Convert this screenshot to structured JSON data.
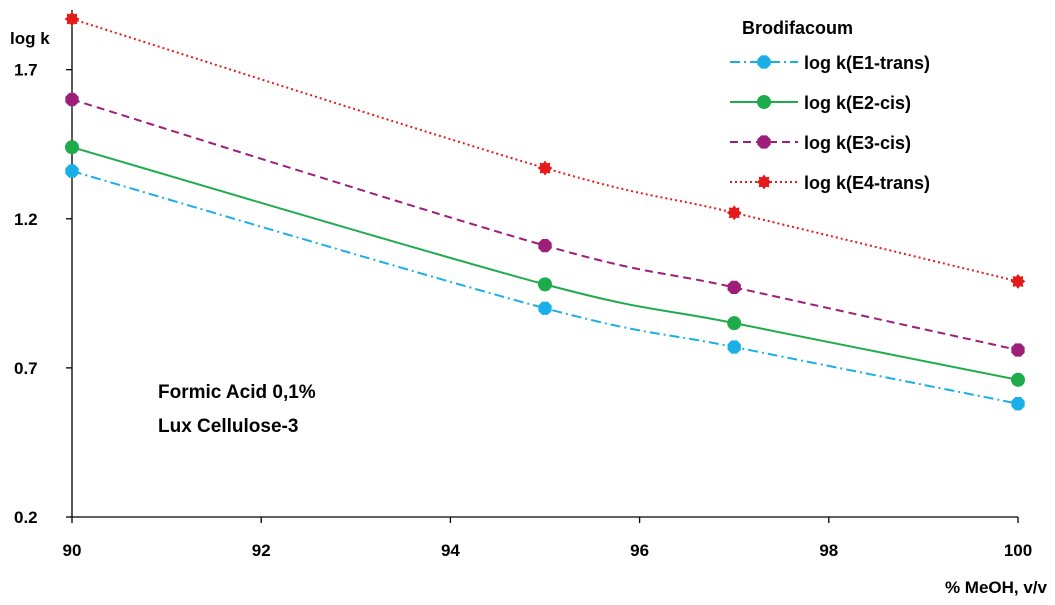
{
  "chart_data": {
    "type": "line",
    "title": "Brodifacoum",
    "xlabel": "% MeOH, v/v",
    "ylabel": "log k",
    "xlim": [
      90,
      100
    ],
    "ylim": [
      0.2,
      1.9
    ],
    "xticks": [
      90,
      92,
      94,
      96,
      98,
      100
    ],
    "xtick_labels": [
      "90",
      "92",
      "94",
      "96",
      "98",
      "100"
    ],
    "yticks": [
      0.2,
      0.7,
      1.2,
      1.7
    ],
    "ytick_labels": [
      "0.2",
      "0.7",
      "1.2",
      "1.7"
    ],
    "grid": false,
    "legend_position": "top-right",
    "x": [
      90,
      95,
      97,
      100
    ],
    "series": [
      {
        "name": "log k(E1-trans)",
        "values": [
          1.36,
          0.9,
          0.77,
          0.58
        ],
        "color": "#1AAFE6",
        "line_style": "dash-dot",
        "marker": "octagon"
      },
      {
        "name": "log k(E2-cis)",
        "values": [
          1.44,
          0.98,
          0.85,
          0.66
        ],
        "color": "#1DAB4B",
        "line_style": "solid",
        "marker": "circle"
      },
      {
        "name": "log k(E3-cis)",
        "values": [
          1.6,
          1.11,
          0.97,
          0.76
        ],
        "color": "#9E1F7A",
        "line_style": "dashed",
        "marker": "octagon"
      },
      {
        "name": "log k(E4-trans)",
        "values": [
          1.87,
          1.37,
          1.22,
          0.99
        ],
        "color": "#E31B1B",
        "line_style": "dotted",
        "marker": "star"
      }
    ],
    "annotations": [
      "Formic Acid 0,1%",
      "Lux Cellulose-3"
    ]
  }
}
